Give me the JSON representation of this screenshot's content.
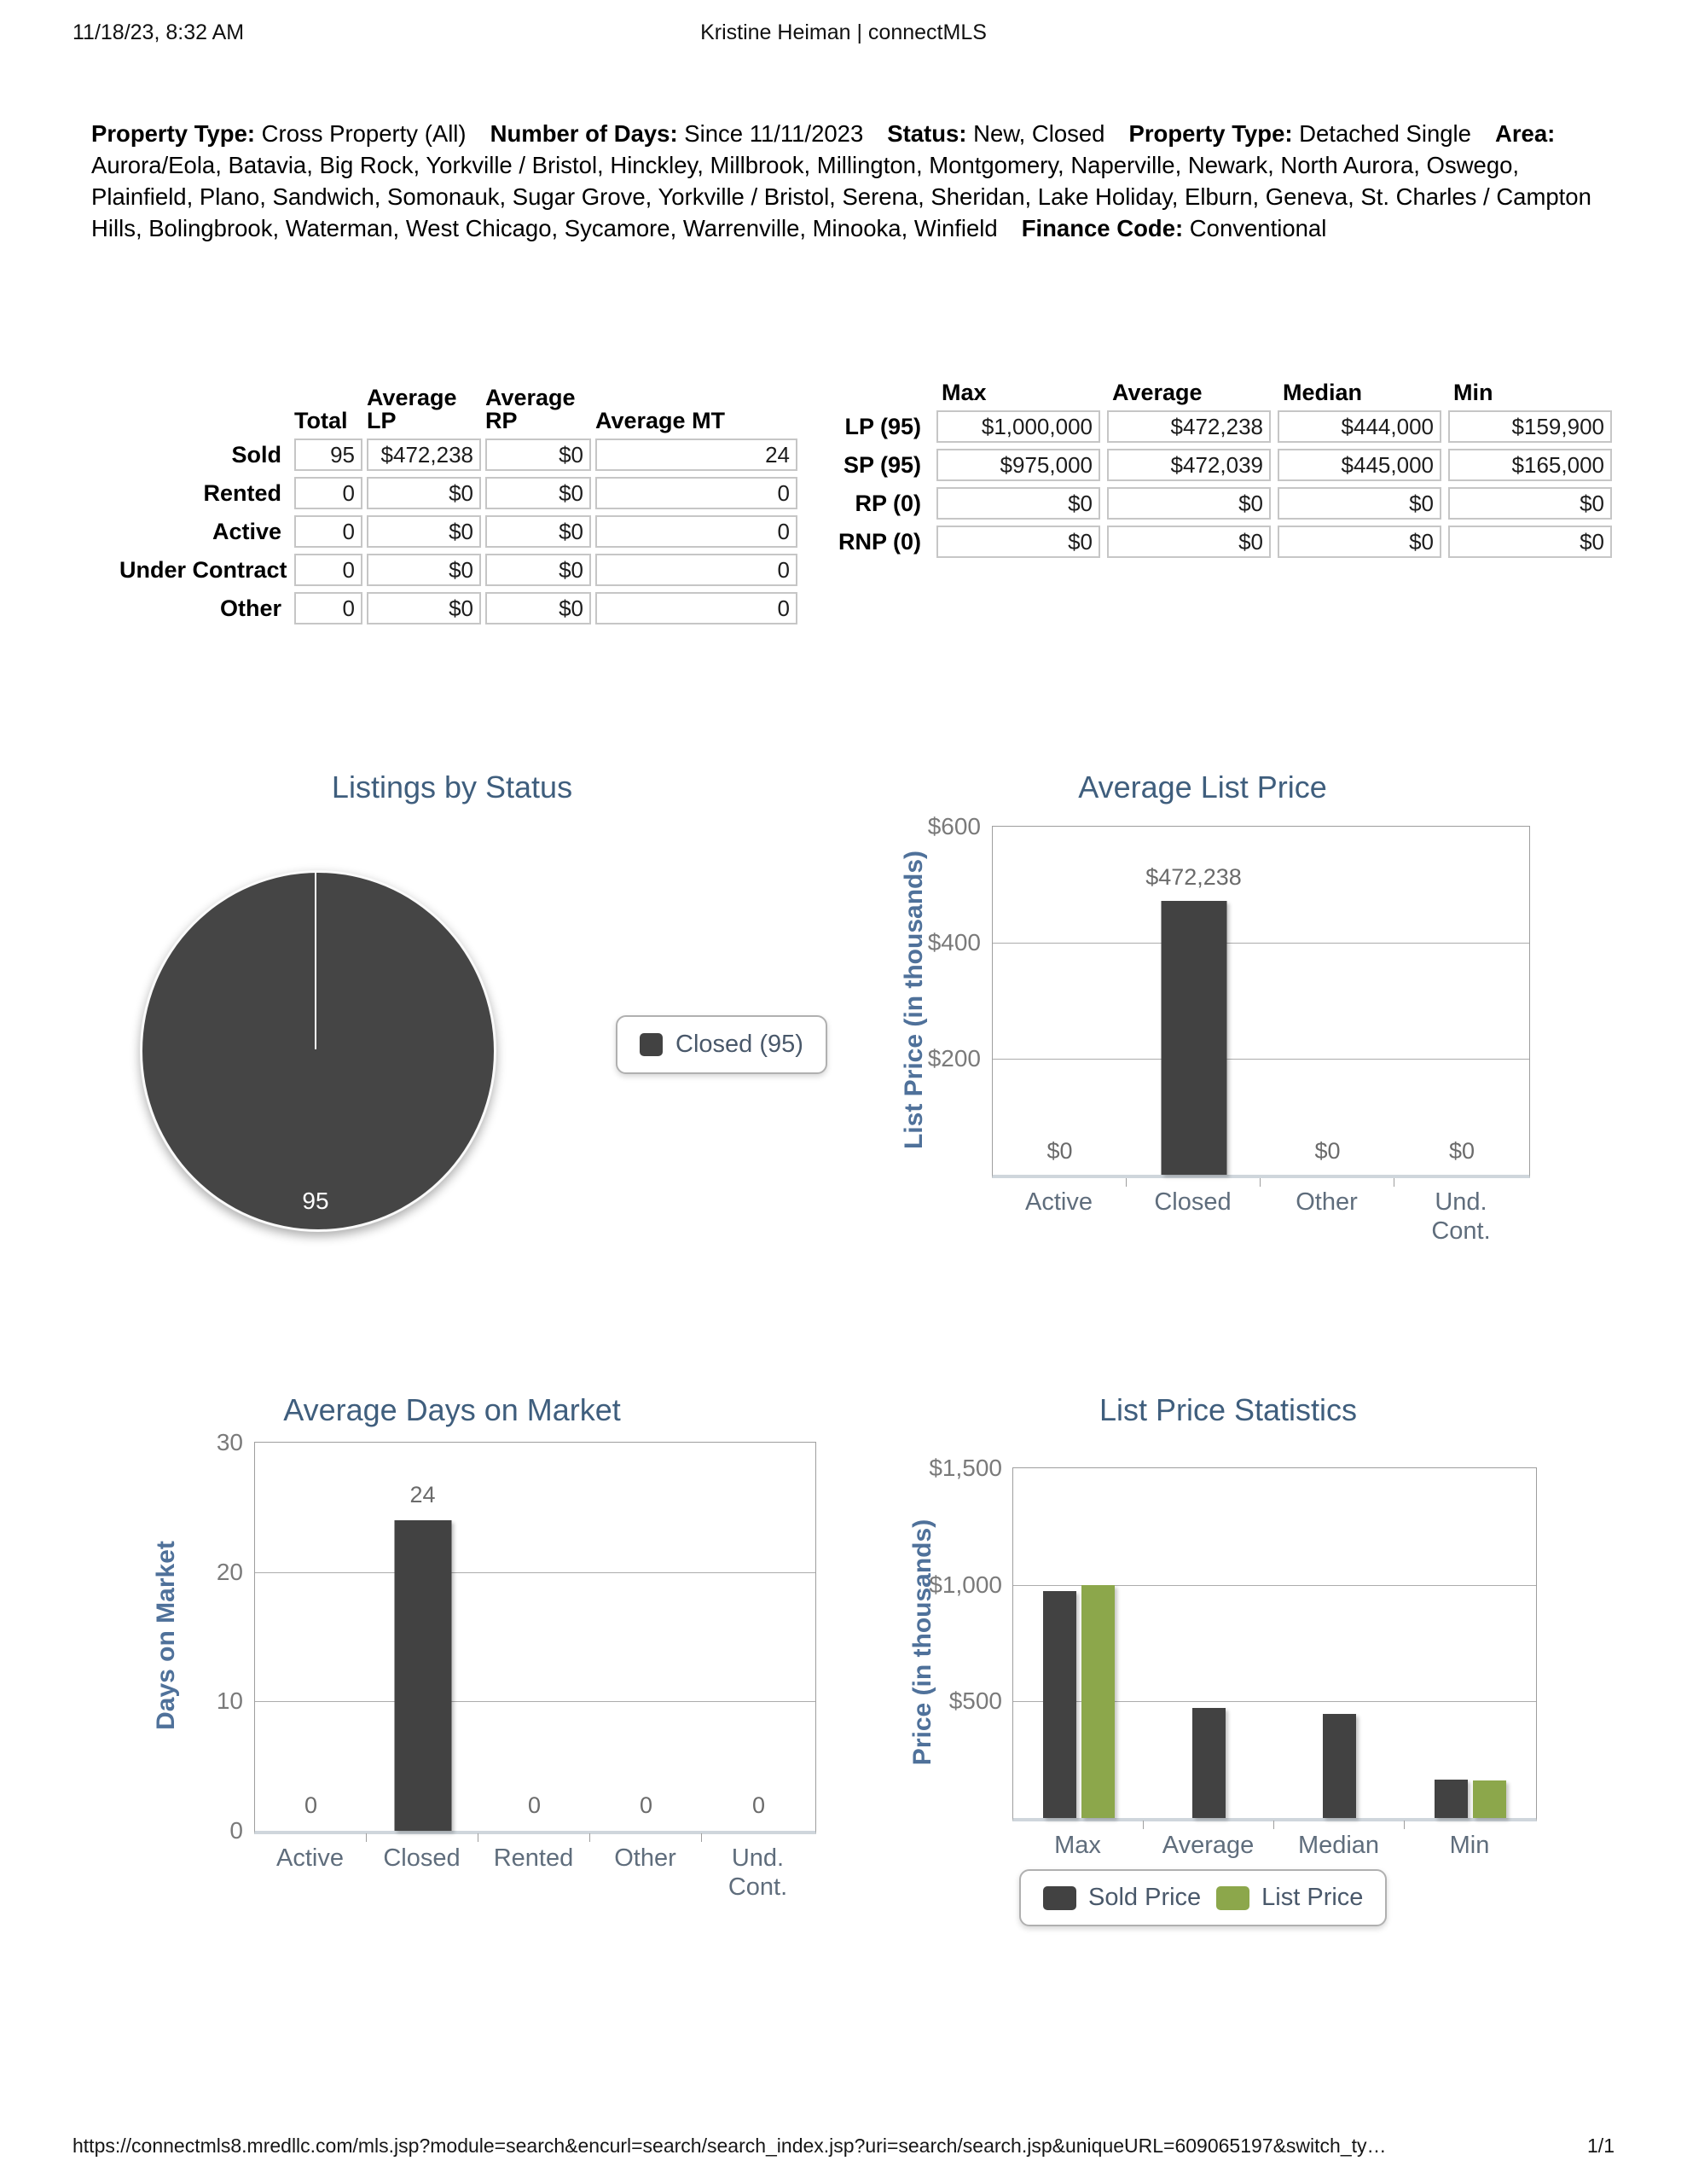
{
  "header": {
    "datetime": "11/18/23, 8:32 AM",
    "title": "Kristine Heiman | connectMLS"
  },
  "criteria": {
    "property_type": {
      "label": "Property Type:",
      "value": "Cross Property (All)"
    },
    "number_of_days": {
      "label": "Number of Days:",
      "value": "Since 11/11/2023"
    },
    "status": {
      "label": "Status:",
      "value": "New, Closed"
    },
    "property_type2": {
      "label": "Property Type:",
      "value": "Detached Single"
    },
    "area": {
      "label": "Area:",
      "value": "Aurora/Eola, Batavia, Big Rock, Yorkville / Bristol, Hinckley, Millbrook, Millington, Montgomery, Naperville, Newark, North Aurora, Oswego, Plainfield, Plano, Sandwich, Somonauk, Sugar Grove, Yorkville / Bristol, Serena, Sheridan, Lake Holiday, Elburn, Geneva, St. Charles / Campton Hills, Bolingbrook, Waterman, West Chicago, Sycamore, Warrenville, Minooka, Winfield"
    },
    "finance_code": {
      "label": "Finance Code:",
      "value": "Conventional"
    }
  },
  "status_table": {
    "headers": [
      "Total",
      "Average LP",
      "Average RP",
      "Average MT"
    ],
    "rows": [
      {
        "label": "Sold",
        "total": "95",
        "avg_lp": "$472,238",
        "avg_rp": "$0",
        "avg_mt": "24"
      },
      {
        "label": "Rented",
        "total": "0",
        "avg_lp": "$0",
        "avg_rp": "$0",
        "avg_mt": "0"
      },
      {
        "label": "Active",
        "total": "0",
        "avg_lp": "$0",
        "avg_rp": "$0",
        "avg_mt": "0"
      },
      {
        "label": "Under Contract",
        "total": "0",
        "avg_lp": "$0",
        "avg_rp": "$0",
        "avg_mt": "0"
      },
      {
        "label": "Other",
        "total": "0",
        "avg_lp": "$0",
        "avg_rp": "$0",
        "avg_mt": "0"
      }
    ]
  },
  "price_table": {
    "headers": [
      "Max",
      "Average",
      "Median",
      "Min"
    ],
    "rows": [
      {
        "label": "LP (95)",
        "max": "$1,000,000",
        "average": "$472,238",
        "median": "$444,000",
        "min": "$159,900"
      },
      {
        "label": "SP (95)",
        "max": "$975,000",
        "average": "$472,039",
        "median": "$445,000",
        "min": "$165,000"
      },
      {
        "label": "RP (0)",
        "max": "$0",
        "average": "$0",
        "median": "$0",
        "min": "$0"
      },
      {
        "label": "RNP (0)",
        "max": "$0",
        "average": "$0",
        "median": "$0",
        "min": "$0"
      }
    ]
  },
  "chart_data": [
    {
      "type": "pie",
      "title": "Listings by Status",
      "labels": [
        "Closed"
      ],
      "values": [
        95
      ],
      "colors": [
        "#454545"
      ],
      "slice_label": "95",
      "legend": [
        {
          "label": "Closed (95)",
          "color": "#454545"
        }
      ]
    },
    {
      "type": "bar",
      "title": "Average List Price",
      "ylabel": "List Price (in thousands)",
      "ylim": [
        0,
        600
      ],
      "yticks": [
        "$600",
        "$400",
        "$200"
      ],
      "categories": [
        "Active",
        "Closed",
        "Other",
        "Und.\nCont."
      ],
      "values": [
        0,
        472.238,
        0,
        0
      ],
      "value_labels": [
        "$0",
        "$472,238",
        "$0",
        "$0"
      ],
      "bar_color": "#424242",
      "grid": "on"
    },
    {
      "type": "bar",
      "title": "Average Days on Market",
      "ylabel": "Days on Market",
      "ylim": [
        0,
        30
      ],
      "yticks": [
        "30",
        "20",
        "10",
        "0"
      ],
      "categories": [
        "Active",
        "Closed",
        "Rented",
        "Other",
        "Und.\nCont."
      ],
      "values": [
        0,
        24,
        0,
        0,
        0
      ],
      "value_labels": [
        "0",
        "24",
        "0",
        "0",
        "0"
      ],
      "bar_color": "#424242",
      "grid": "on"
    },
    {
      "type": "bar",
      "title": "List Price Statistics",
      "ylabel": "Price (in thousands)",
      "ylim": [
        0,
        1500
      ],
      "yticks": [
        "$1,500",
        "$1,000",
        "$500"
      ],
      "categories": [
        "Max",
        "Average",
        "Median",
        "Min"
      ],
      "series": [
        {
          "name": "Sold Price",
          "color": "#424242",
          "values": [
            975,
            472,
            445,
            165
          ]
        },
        {
          "name": "List Price",
          "color": "#8CA74B",
          "values": [
            1000,
            null,
            null,
            160
          ]
        }
      ],
      "legend_position": "bottom",
      "grid": "on"
    }
  ],
  "footer": {
    "url": "https://connectmls8.mredllc.com/mls.jsp?module=search&encurl=search/search_index.jsp?uri=search/search.jsp&uniqueURL=609065197&switch_ty…",
    "page": "1/1"
  }
}
